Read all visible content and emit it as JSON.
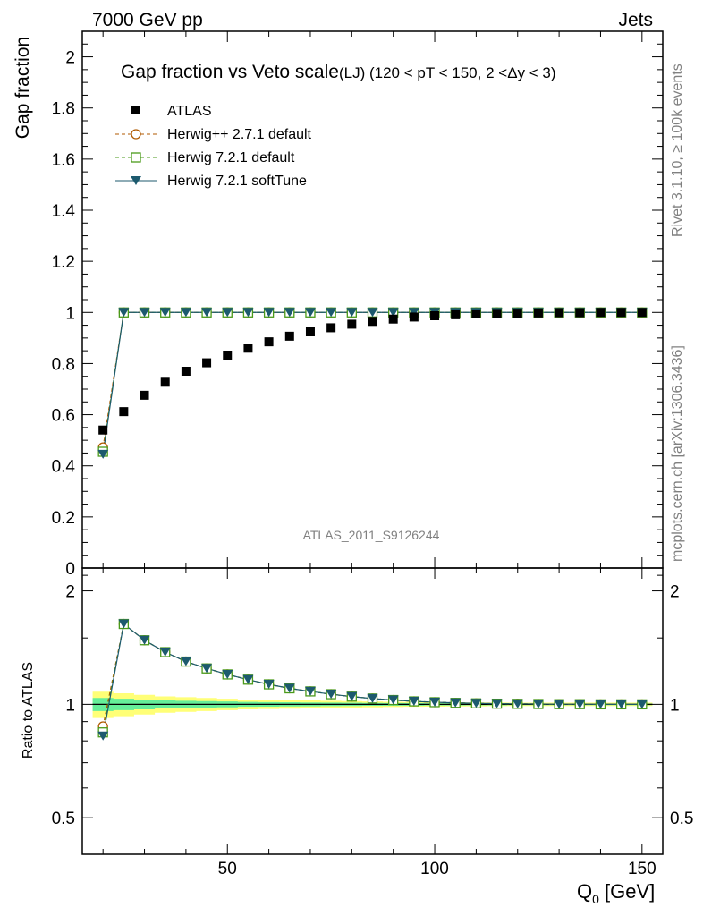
{
  "header": {
    "left": "7000 GeV pp",
    "right": "Jets"
  },
  "side": {
    "upper": "Rivet 3.1.10, ≥ 100k events",
    "lower": "mcplots.cern.ch [arXiv:1306.3436]"
  },
  "chart_data": {
    "type": "scatter",
    "title": "Gap fraction vs Veto scale",
    "title_suffix": "(LJ) (120 < pT < 150, 2 <Δy < 3)",
    "watermark": "ATLAS_2011_S9126244",
    "xlabel_main": "Q",
    "xlabel_sub": "0",
    "xlabel_unit": " [GeV]",
    "ylabel": "Gap fraction",
    "ratio_ylabel": "Ratio to ATLAS",
    "xlim": [
      15,
      155
    ],
    "ylim": [
      0,
      2.1
    ],
    "ratio_ylim": [
      0.4,
      2.3
    ],
    "ratio_scale": "log",
    "x_ticks": [
      50,
      100,
      150
    ],
    "y_ticks": [
      0,
      0.2,
      0.4,
      0.6,
      0.8,
      1,
      1.2,
      1.4,
      1.6,
      1.8,
      2
    ],
    "y_tick_labels": [
      "0",
      "0.2",
      "0.4",
      "0.6",
      "0.8",
      "1",
      "1.2",
      "1.4",
      "1.6",
      "1.8",
      "2"
    ],
    "ratio_ticks": [
      0.5,
      1,
      2
    ],
    "ratio_tick_labels": [
      "0.5",
      "1",
      "2"
    ],
    "x": [
      20,
      25,
      30,
      35,
      40,
      45,
      50,
      55,
      60,
      65,
      70,
      75,
      80,
      85,
      90,
      95,
      100,
      105,
      110,
      115,
      120,
      125,
      130,
      135,
      140,
      145,
      150
    ],
    "atlas": [
      0.54,
      0.612,
      0.676,
      0.727,
      0.77,
      0.803,
      0.833,
      0.86,
      0.885,
      0.907,
      0.924,
      0.94,
      0.954,
      0.965,
      0.974,
      0.982,
      0.987,
      0.991,
      0.994,
      0.996,
      0.997,
      0.998,
      0.999,
      0.999,
      1.0,
      1.0,
      1.0
    ],
    "band_outer": [
      0.08,
      0.07,
      0.06,
      0.05,
      0.045,
      0.04,
      0.035,
      0.03,
      0.028,
      0.026,
      0.024,
      0.022,
      0.02,
      0.018,
      0.016,
      0.015,
      0.014,
      0.013,
      0.012,
      0.011,
      0.01,
      0.01,
      0.01,
      0.01,
      0.01,
      0.01,
      0.01
    ],
    "band_inner": [
      0.04,
      0.035,
      0.03,
      0.025,
      0.022,
      0.02,
      0.018,
      0.015,
      0.014,
      0.013,
      0.012,
      0.011,
      0.01,
      0.009,
      0.008,
      0.008,
      0.007,
      0.007,
      0.006,
      0.006,
      0.005,
      0.005,
      0.005,
      0.005,
      0.005,
      0.005,
      0.005
    ],
    "band_colors": {
      "outer": "#ffff77",
      "inner": "#66ee99"
    },
    "series": [
      {
        "name": "Herwig++ 2.7.1 default",
        "color": "#b05a00",
        "marker": "open-circle",
        "dash": true,
        "values": [
          0.472,
          1,
          1,
          1,
          1,
          1,
          1,
          1,
          1,
          1,
          1,
          1,
          1,
          1,
          1,
          1,
          1,
          1,
          1,
          1,
          1,
          1,
          1,
          1,
          1,
          1,
          1
        ]
      },
      {
        "name": "Herwig 7.2.1 default",
        "color": "#4a9a1a",
        "marker": "open-square",
        "dash": true,
        "values": [
          0.455,
          1,
          1,
          1,
          1,
          1,
          1,
          1,
          1,
          1,
          1,
          1,
          1,
          1,
          1,
          1,
          1,
          1,
          1,
          1,
          1,
          1,
          1,
          1,
          1,
          1,
          1
        ]
      },
      {
        "name": "Herwig 7.2.1 softTune",
        "color": "#1d5a6e",
        "marker": "filled-down-triangle",
        "dash": false,
        "values": [
          0.445,
          1,
          1,
          1,
          1,
          1,
          1,
          1,
          1,
          1,
          1,
          1,
          1,
          1,
          1,
          1,
          1,
          1,
          1,
          1,
          1,
          1,
          1,
          1,
          1,
          1,
          1
        ]
      }
    ],
    "data_name": "ATLAS",
    "data_color": "#000000"
  }
}
